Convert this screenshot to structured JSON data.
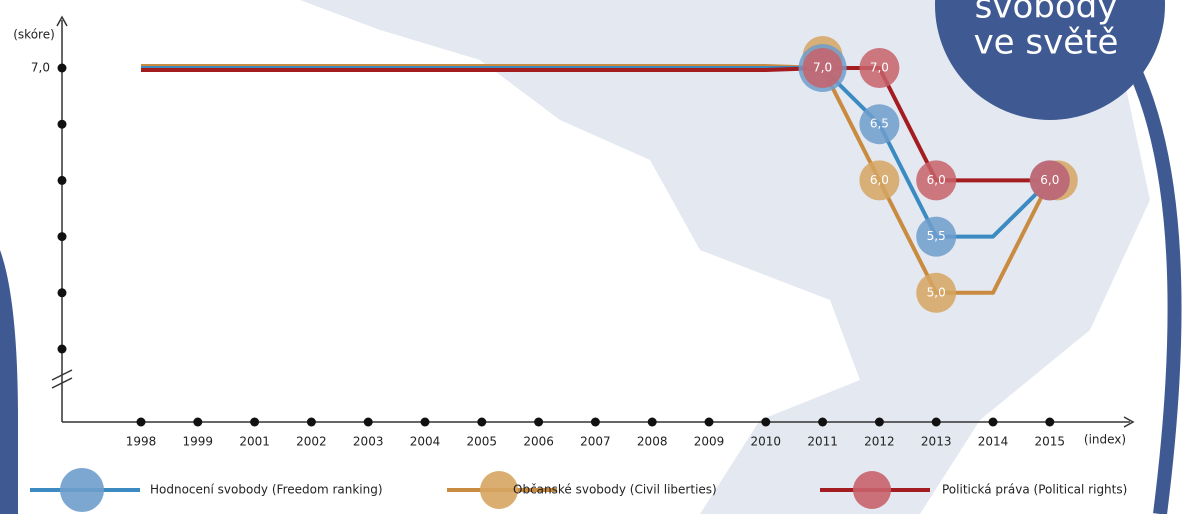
{
  "chart_data": {
    "type": "line",
    "badge": [
      "svobody",
      "ve světě"
    ],
    "y_label": "(skóre)",
    "x_label": "(index)",
    "categories": [
      "1998",
      "1999",
      "2001",
      "2002",
      "2003",
      "2004",
      "2005",
      "2006",
      "2007",
      "2008",
      "2009",
      "2010",
      "2011",
      "2012",
      "2013",
      "2014",
      "2015"
    ],
    "ylim": [
      4.5,
      7.0
    ],
    "yticks": [
      {
        "value": 7.0,
        "label": "7,0"
      }
    ],
    "yminor_ticks": [
      6.5,
      6.0,
      5.5,
      5.0,
      4.5
    ],
    "series": [
      {
        "name": "Občanské svobody (Civil liberties)",
        "color": "#c98b3f",
        "bubble_color": "#d6a561",
        "values": [
          7,
          7,
          7,
          7,
          7,
          7,
          7,
          7,
          7,
          7,
          7,
          7,
          7,
          6.0,
          5.0,
          5.0,
          6.0
        ],
        "value_labels": [
          null,
          null,
          null,
          null,
          null,
          null,
          null,
          null,
          null,
          null,
          null,
          null,
          null,
          "6,0",
          "5,0",
          null,
          null
        ]
      },
      {
        "name": "Hodnocení svobody (Freedom ranking)",
        "color": "#3b8bc2",
        "bubble_color": "#6e9dcc",
        "values": [
          7,
          7,
          7,
          7,
          7,
          7,
          7,
          7,
          7,
          7,
          7,
          7,
          7,
          6.5,
          5.5,
          5.5,
          6.0
        ],
        "value_labels": [
          null,
          null,
          null,
          null,
          null,
          null,
          null,
          null,
          null,
          null,
          null,
          null,
          "7,0",
          "6,5",
          "5,5",
          null,
          null
        ]
      },
      {
        "name": "Politická práva (Political rights)",
        "color": "#a31d20",
        "bubble_color": "#c8626a",
        "values": [
          7,
          7,
          7,
          7,
          7,
          7,
          7,
          7,
          7,
          7,
          7,
          7,
          7,
          7.0,
          6.0,
          6.0,
          6.0
        ],
        "value_labels": [
          null,
          null,
          null,
          null,
          null,
          null,
          null,
          null,
          null,
          null,
          null,
          null,
          null,
          "7,0",
          "6,0",
          null,
          "6,0"
        ]
      }
    ],
    "bubbles_at": [
      12,
      13,
      14,
      16
    ]
  }
}
